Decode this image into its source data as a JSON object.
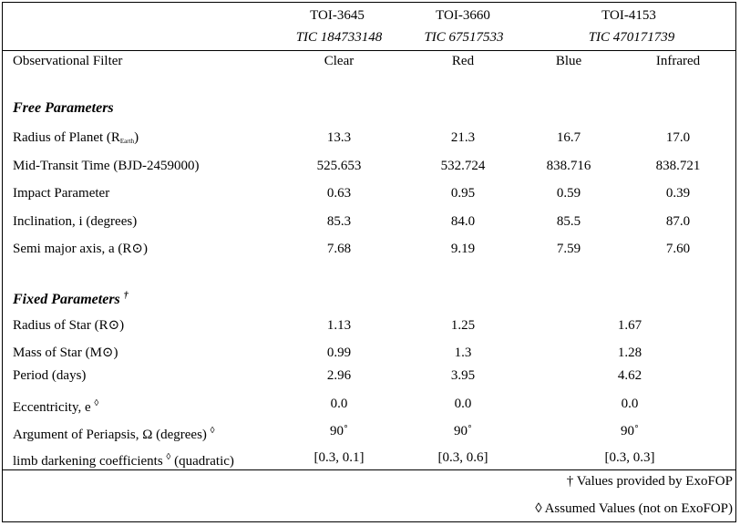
{
  "headers": {
    "toi": [
      "TOI-3645",
      "TOI-3660",
      "TOI-4153"
    ],
    "tic": [
      "TIC 184733148",
      "TIC 67517533",
      "TIC 470171739"
    ]
  },
  "filter_row": {
    "label": "Observational Filter",
    "values": [
      "Clear",
      "Red",
      "Blue",
      "Infrared"
    ]
  },
  "free_section": {
    "title": "Free Parameters",
    "rows": [
      {
        "label": "Radius of Planet (R",
        "sub": "Earth",
        "label_after": ")",
        "values": [
          "13.3",
          "21.3",
          "16.7",
          "17.0"
        ]
      },
      {
        "label": "Mid-Transit Time (BJD-2459000)",
        "values": [
          "525.653",
          "532.724",
          "838.716",
          "838.721"
        ]
      },
      {
        "label": "Impact Parameter",
        "values": [
          "0.63",
          "0.95",
          "0.59",
          "0.39"
        ]
      },
      {
        "label": "Inclination, i (degrees)",
        "values": [
          "85.3",
          "84.0",
          "85.5",
          "87.0"
        ]
      },
      {
        "label": "Semi major axis, a (R⊙)",
        "values": [
          "7.68",
          "9.19",
          "7.59",
          "7.60"
        ]
      }
    ]
  },
  "fixed_section": {
    "title": "Fixed Parameters",
    "title_mark": "†",
    "rows": [
      {
        "label": "Radius of Star (R⊙)",
        "values": [
          "1.13",
          "1.25",
          "1.67"
        ]
      },
      {
        "label": "Mass of Star (M⊙)",
        "values": [
          "0.99",
          "1.3",
          "1.28"
        ]
      },
      {
        "label": "Period (days)",
        "values": [
          "2.96",
          "3.95",
          "4.62"
        ]
      },
      {
        "label": "Eccentricity, e",
        "mark": "◊",
        "values": [
          "0.0",
          "0.0",
          "0.0"
        ]
      },
      {
        "label": "Argument of Periapsis, Ω (degrees)",
        "mark": "◊",
        "values": [
          "90˚",
          "90˚",
          "90˚"
        ]
      },
      {
        "label": "limb darkening coefficients",
        "mark": "◊",
        "label_after": " (quadratic)",
        "values": [
          "[0.3, 0.1]",
          "[0.3, 0.6]",
          "[0.3, 0.3]"
        ]
      }
    ]
  },
  "footnotes": [
    "† Values provided by ExoFOP",
    "◊ Assumed Values (not on ExoFOP)"
  ]
}
